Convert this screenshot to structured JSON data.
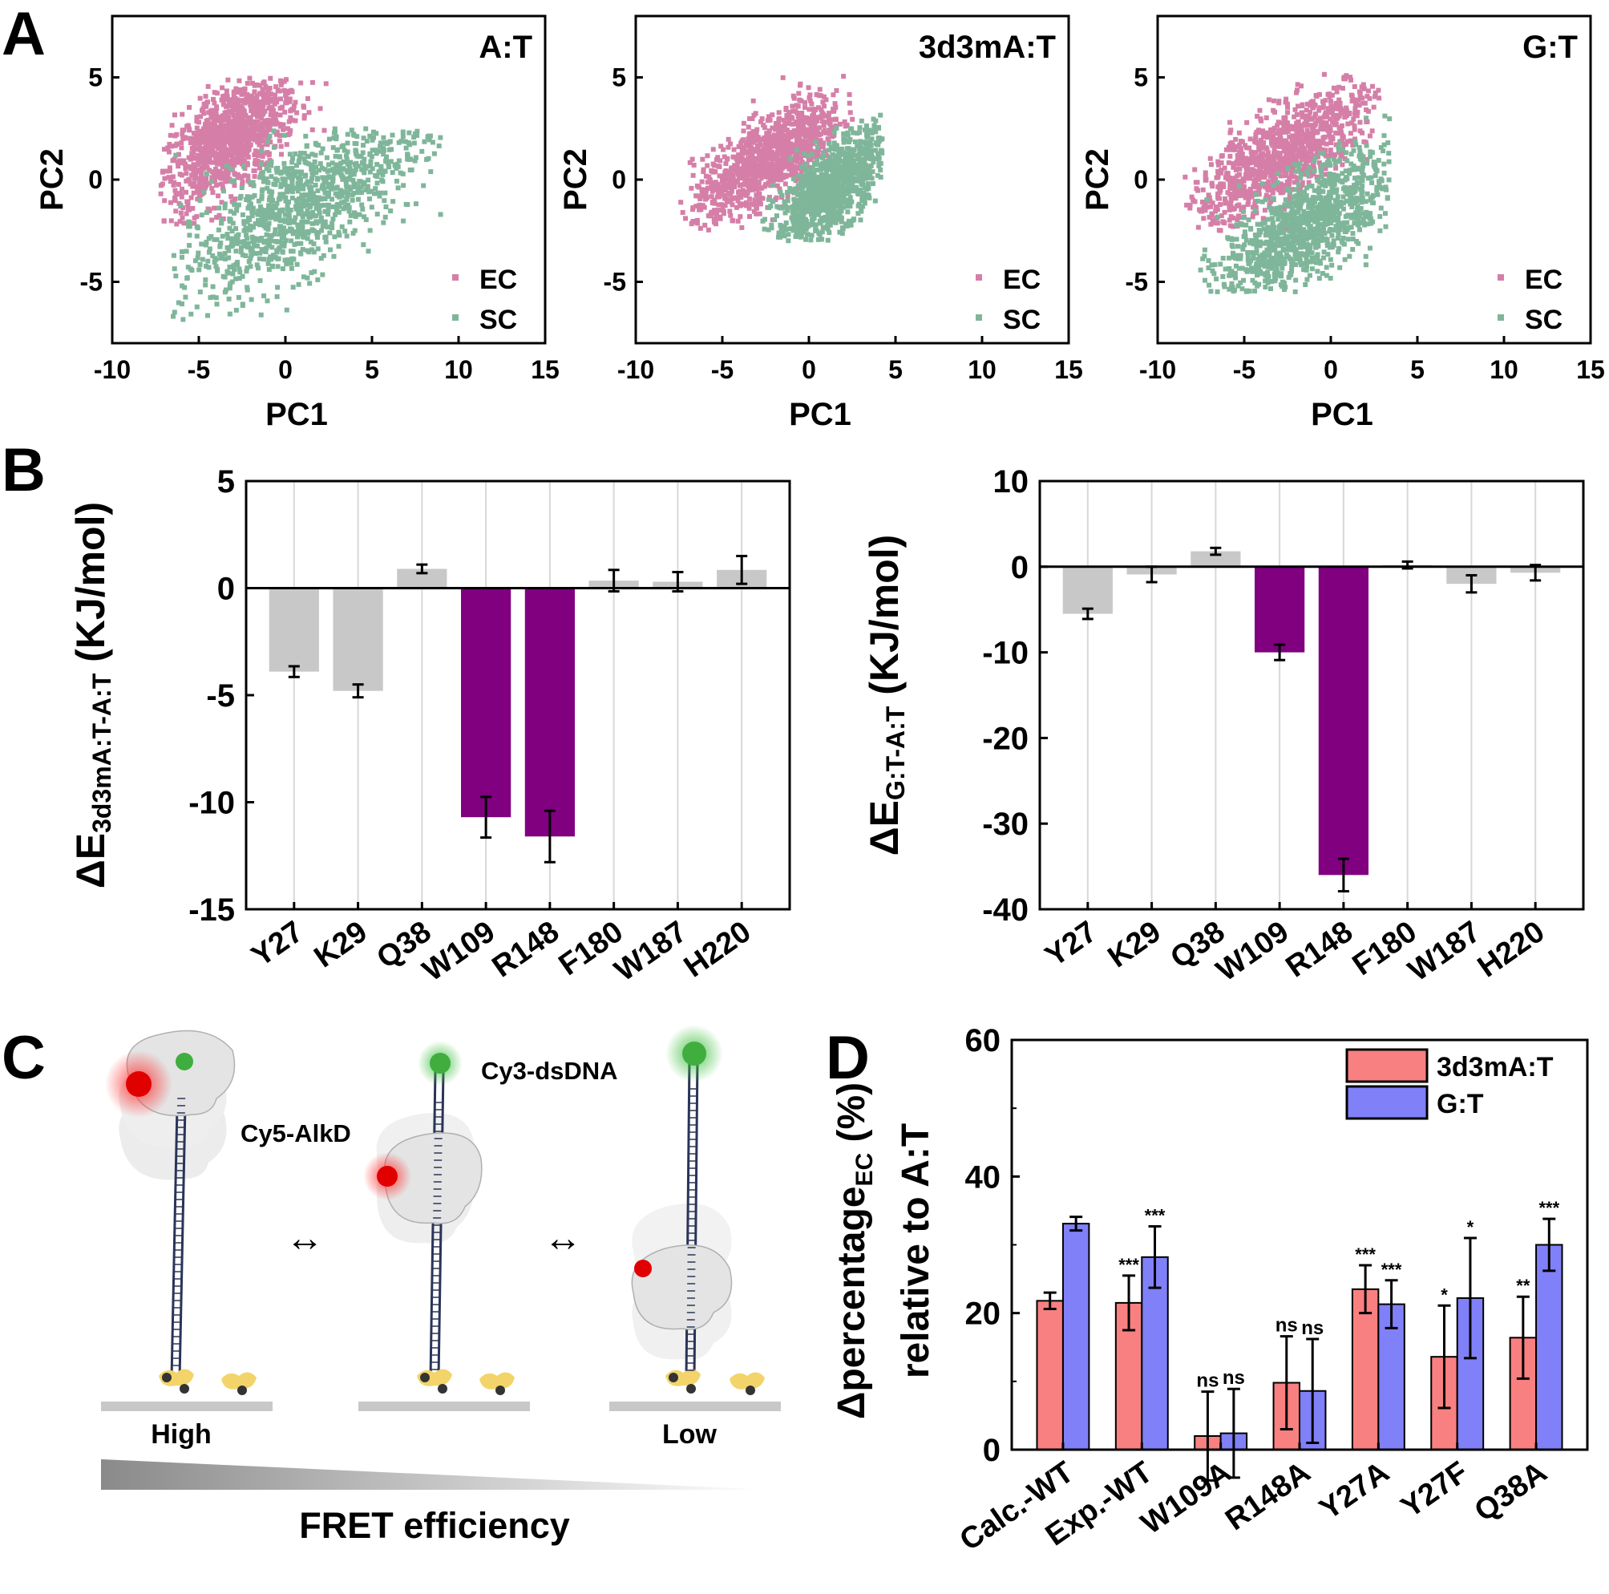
{
  "panel_labels": {
    "a": "A",
    "b": "B",
    "c": "C",
    "d": "D"
  },
  "colors": {
    "ec_pink": "#d57fa8",
    "sc_green": "#7fb69a",
    "bar_gray": "#c8c8c8",
    "bar_purple": "#800080",
    "bar_red": "#f88080",
    "bar_blue": "#8080f8",
    "donor_green": "#3fae3f",
    "acceptor_red": "#e00000",
    "anchor_yellow": "#f2d46a"
  },
  "chart_data": [
    {
      "id": "A-1",
      "type": "scatter",
      "title": "A:T",
      "xlabel": "PC1",
      "ylabel": "PC2",
      "xlim": [
        -10,
        15
      ],
      "ylim": [
        -8,
        8
      ],
      "xticks": [
        "-10",
        "-5",
        "0",
        "5",
        "10",
        "15"
      ],
      "yticks": [
        "5",
        "0",
        "-5"
      ],
      "legend": {
        "placement": "bottom-right",
        "entries": [
          "EC",
          "SC"
        ]
      },
      "series": [
        {
          "name": "EC",
          "color": "#d57fa8",
          "center": [
            -3.2,
            2.0
          ],
          "spread": [
            2.0,
            1.3
          ],
          "tilt": 0.55,
          "x_range": [
            -7.2,
            2.6
          ],
          "y_range": [
            -2.5,
            5.0
          ]
        },
        {
          "name": "SC",
          "color": "#7fb69a",
          "center": [
            0.8,
            -1.3
          ],
          "spread": [
            3.6,
            1.6
          ],
          "tilt": 0.45,
          "x_range": [
            -6.5,
            9.0
          ],
          "y_range": [
            -7.0,
            2.5
          ]
        }
      ]
    },
    {
      "id": "A-2",
      "type": "scatter",
      "title": "3d3mA:T",
      "xlabel": "PC1",
      "ylabel": "PC2",
      "xlim": [
        -10,
        15
      ],
      "ylim": [
        -8,
        8
      ],
      "xticks": [
        "-10",
        "-5",
        "0",
        "5",
        "10",
        "15"
      ],
      "yticks": [
        "5",
        "0",
        "-5"
      ],
      "legend": {
        "placement": "bottom-right",
        "entries": [
          "EC",
          "SC"
        ]
      },
      "series": [
        {
          "name": "EC",
          "color": "#d57fa8",
          "center": [
            -2.3,
            1.0
          ],
          "spread": [
            2.2,
            1.0
          ],
          "tilt": 0.5,
          "x_range": [
            -7.5,
            2.6
          ],
          "y_range": [
            -2.5,
            6.0
          ]
        },
        {
          "name": "SC",
          "color": "#7fb69a",
          "center": [
            1.3,
            -0.4
          ],
          "spread": [
            1.6,
            1.0
          ],
          "tilt": 0.6,
          "x_range": [
            -3.5,
            4.3
          ],
          "y_range": [
            -3.0,
            4.5
          ]
        }
      ]
    },
    {
      "id": "A-3",
      "type": "scatter",
      "title": "G:T",
      "xlabel": "PC1",
      "ylabel": "PC2",
      "xlim": [
        -10,
        15
      ],
      "ylim": [
        -8,
        8
      ],
      "xticks": [
        "-10",
        "-5",
        "0",
        "5",
        "10",
        "15"
      ],
      "yticks": [
        "5",
        "0",
        "-5"
      ],
      "legend": {
        "placement": "bottom-right",
        "entries": [
          "EC",
          "SC"
        ]
      },
      "series": [
        {
          "name": "EC",
          "color": "#d57fa8",
          "center": [
            -2.8,
            1.2
          ],
          "spread": [
            2.7,
            1.1
          ],
          "tilt": 0.5,
          "x_range": [
            -8.5,
            2.8
          ],
          "y_range": [
            -2.5,
            5.2
          ]
        },
        {
          "name": "SC",
          "color": "#7fb69a",
          "center": [
            -1.5,
            -2.3
          ],
          "spread": [
            2.4,
            1.3
          ],
          "tilt": 0.5,
          "x_range": [
            -8.0,
            3.5
          ],
          "y_range": [
            -5.5,
            3.5
          ]
        }
      ]
    },
    {
      "id": "B-1",
      "type": "bar",
      "ylabel_main": "ΔE",
      "ylabel_sub": "3d3mA:T-A:T",
      "ylabel_unit": " (KJ/mol)",
      "ylim": [
        -15,
        5
      ],
      "yticks": [
        "5",
        "0",
        "-5",
        "-10",
        "-15"
      ],
      "categories": [
        "Y27",
        "K29",
        "Q38",
        "W109",
        "R148",
        "F180",
        "W187",
        "H220"
      ],
      "values": [
        -3.9,
        -4.8,
        0.9,
        -10.7,
        -11.6,
        0.35,
        0.3,
        0.85
      ],
      "errors": [
        0.25,
        0.3,
        0.2,
        0.95,
        1.2,
        0.5,
        0.45,
        0.65
      ],
      "highlight": [
        "W109",
        "R148"
      ]
    },
    {
      "id": "B-2",
      "type": "bar",
      "ylabel_main": "ΔE",
      "ylabel_sub": "G:T-A:T",
      "ylabel_unit": " (KJ/mol)",
      "ylim": [
        -40,
        10
      ],
      "yticks": [
        "10",
        "0",
        "-10",
        "-20",
        "-30",
        "-40"
      ],
      "categories": [
        "Y27",
        "K29",
        "Q38",
        "W109",
        "R148",
        "F180",
        "W187",
        "H220"
      ],
      "values": [
        -5.5,
        -0.9,
        1.8,
        -10.0,
        -36.0,
        0.2,
        -2.0,
        -0.7
      ],
      "errors": [
        0.6,
        0.9,
        0.4,
        0.9,
        1.9,
        0.4,
        1.0,
        0.9
      ],
      "highlight": [
        "W109",
        "R148"
      ]
    },
    {
      "id": "D",
      "type": "bar",
      "ylabel_line1_main": "Δpercentage",
      "ylabel_line1_sub": "EC",
      "ylabel_line1_unit": " (%)",
      "ylabel_line2": "relative to A:T",
      "ylim": [
        0,
        60
      ],
      "yticks": [
        "60",
        "40",
        "20",
        "0"
      ],
      "categories": [
        "Calc.-WT",
        "Exp.-WT",
        "W109A",
        "R148A",
        "Y27A",
        "Y27F",
        "Q38A"
      ],
      "legend": {
        "placement": "top-right"
      },
      "series": [
        {
          "name": "3d3mA:T",
          "color": "#f88080",
          "values": [
            21.8,
            21.5,
            2.0,
            9.8,
            23.5,
            13.6,
            16.4
          ],
          "errors": [
            1.2,
            4.0,
            6.5,
            6.8,
            3.5,
            7.5,
            6.0
          ],
          "significance": [
            "",
            "***",
            "ns",
            "ns",
            "***",
            "*",
            "**"
          ]
        },
        {
          "name": "G:T",
          "color": "#8080f8",
          "values": [
            33.1,
            28.2,
            2.4,
            8.6,
            21.3,
            22.2,
            30.0
          ],
          "errors": [
            1.0,
            4.5,
            6.5,
            7.6,
            3.5,
            8.8,
            3.8
          ],
          "significance": [
            "",
            "***",
            "ns",
            "ns",
            "***",
            "*",
            "***"
          ]
        }
      ]
    }
  ],
  "schematic": {
    "label_cy3": "Cy3-dsDNA",
    "label_cy5": "Cy5-AlkD",
    "arrow_symbol": "↔",
    "label_high": "High",
    "label_low": "Low",
    "label_fret": "FRET efficiency"
  }
}
